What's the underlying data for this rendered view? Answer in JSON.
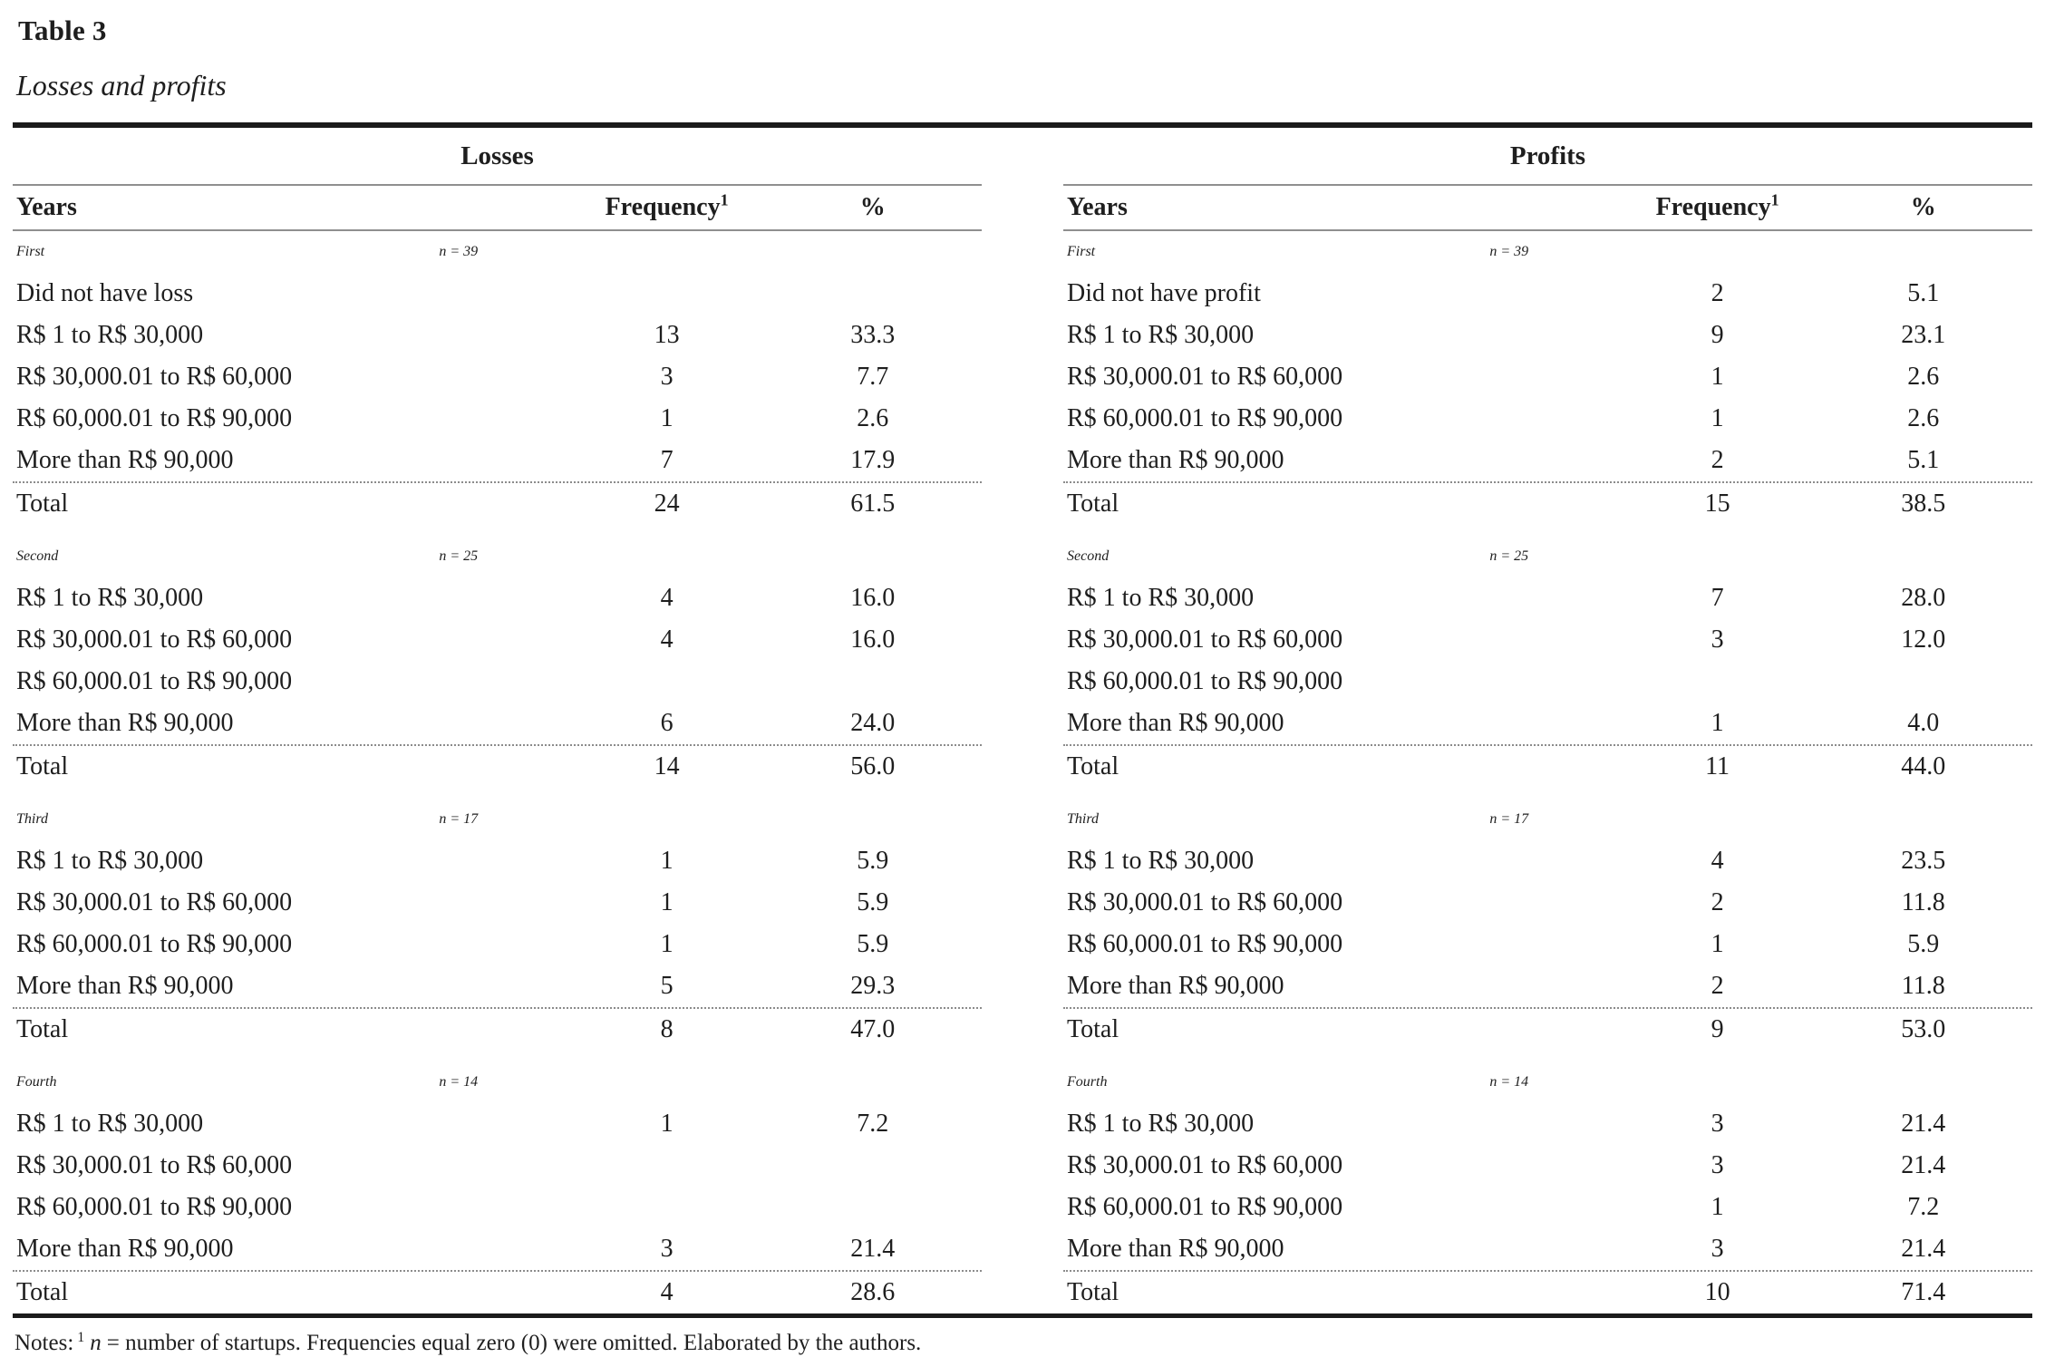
{
  "title": "Table 3",
  "subtitle": "Losses and profits",
  "columns": {
    "years": "Years",
    "frequency": "Frequency",
    "frequency_sup": "1",
    "percent": "%"
  },
  "panels": [
    {
      "name": "Losses",
      "groups": [
        {
          "year": "First",
          "n": "n = 39",
          "rows": [
            {
              "label": "Did not have loss",
              "freq": "",
              "pct": ""
            },
            {
              "label": "R$ 1 to R$ 30,000",
              "freq": "13",
              "pct": "33.3"
            },
            {
              "label": "R$ 30,000.01 to R$ 60,000",
              "freq": "3",
              "pct": "7.7"
            },
            {
              "label": "R$ 60,000.01 to R$ 90,000",
              "freq": "1",
              "pct": "2.6"
            },
            {
              "label": "More than R$ 90,000",
              "freq": "7",
              "pct": "17.9"
            }
          ],
          "total": {
            "label": "Total",
            "freq": "24",
            "pct": "61.5"
          }
        },
        {
          "year": "Second",
          "n": "n = 25",
          "rows": [
            {
              "label": "R$ 1 to R$ 30,000",
              "freq": "4",
              "pct": "16.0"
            },
            {
              "label": "R$ 30,000.01 to R$ 60,000",
              "freq": "4",
              "pct": "16.0"
            },
            {
              "label": "R$ 60,000.01 to R$ 90,000",
              "freq": "",
              "pct": ""
            },
            {
              "label": "More than R$ 90,000",
              "freq": "6",
              "pct": "24.0"
            }
          ],
          "total": {
            "label": "Total",
            "freq": "14",
            "pct": "56.0"
          }
        },
        {
          "year": "Third",
          "n": "n = 17",
          "rows": [
            {
              "label": "R$ 1 to R$ 30,000",
              "freq": "1",
              "pct": "5.9"
            },
            {
              "label": "R$ 30,000.01 to R$ 60,000",
              "freq": "1",
              "pct": "5.9"
            },
            {
              "label": "R$ 60,000.01 to R$ 90,000",
              "freq": "1",
              "pct": "5.9"
            },
            {
              "label": "More than R$ 90,000",
              "freq": "5",
              "pct": "29.3"
            }
          ],
          "total": {
            "label": "Total",
            "freq": "8",
            "pct": "47.0"
          }
        },
        {
          "year": "Fourth",
          "n": "n = 14",
          "rows": [
            {
              "label": "R$ 1 to R$ 30,000",
              "freq": "1",
              "pct": "7.2"
            },
            {
              "label": "R$ 30,000.01 to R$ 60,000",
              "freq": "",
              "pct": ""
            },
            {
              "label": "R$ 60,000.01 to R$ 90,000",
              "freq": "",
              "pct": ""
            },
            {
              "label": "More than R$ 90,000",
              "freq": "3",
              "pct": "21.4"
            }
          ],
          "total": {
            "label": "Total",
            "freq": "4",
            "pct": "28.6"
          }
        }
      ]
    },
    {
      "name": "Profits",
      "groups": [
        {
          "year": "First",
          "n": "n = 39",
          "rows": [
            {
              "label": "Did not have profit",
              "freq": "2",
              "pct": "5.1"
            },
            {
              "label": "R$ 1 to R$ 30,000",
              "freq": "9",
              "pct": "23.1"
            },
            {
              "label": "R$ 30,000.01 to R$ 60,000",
              "freq": "1",
              "pct": "2.6"
            },
            {
              "label": "R$ 60,000.01 to R$ 90,000",
              "freq": "1",
              "pct": "2.6"
            },
            {
              "label": "More than R$ 90,000",
              "freq": "2",
              "pct": "5.1"
            }
          ],
          "total": {
            "label": "Total",
            "freq": "15",
            "pct": "38.5"
          }
        },
        {
          "year": "Second",
          "n": "n = 25",
          "rows": [
            {
              "label": "R$ 1 to R$ 30,000",
              "freq": "7",
              "pct": "28.0"
            },
            {
              "label": "R$ 30,000.01 to R$ 60,000",
              "freq": "3",
              "pct": "12.0"
            },
            {
              "label": "R$ 60,000.01 to R$ 90,000",
              "freq": "",
              "pct": ""
            },
            {
              "label": "More than R$ 90,000",
              "freq": "1",
              "pct": "4.0"
            }
          ],
          "total": {
            "label": "Total",
            "freq": "11",
            "pct": "44.0"
          }
        },
        {
          "year": "Third",
          "n": "n = 17",
          "rows": [
            {
              "label": "R$ 1 to R$ 30,000",
              "freq": "4",
              "pct": "23.5"
            },
            {
              "label": "R$ 30,000.01 to R$ 60,000",
              "freq": "2",
              "pct": "11.8"
            },
            {
              "label": "R$ 60,000.01 to R$ 90,000",
              "freq": "1",
              "pct": "5.9"
            },
            {
              "label": "More than R$ 90,000",
              "freq": "2",
              "pct": "11.8"
            }
          ],
          "total": {
            "label": "Total",
            "freq": "9",
            "pct": "53.0"
          }
        },
        {
          "year": "Fourth",
          "n": "n = 14",
          "rows": [
            {
              "label": "R$ 1 to R$ 30,000",
              "freq": "3",
              "pct": "21.4"
            },
            {
              "label": "R$ 30,000.01 to R$ 60,000",
              "freq": "3",
              "pct": "21.4"
            },
            {
              "label": "R$ 60,000.01 to R$ 90,000",
              "freq": "1",
              "pct": "7.2"
            },
            {
              "label": "More than R$ 90,000",
              "freq": "3",
              "pct": "21.4"
            }
          ],
          "total": {
            "label": "Total",
            "freq": "10",
            "pct": "71.4"
          }
        }
      ]
    }
  ],
  "note": {
    "label": "Notes:",
    "sup": "1",
    "n_word": "n",
    "rest": "= number of startups. Frequencies equal zero (0) were omitted. Elaborated by the authors."
  },
  "colors": {
    "text": "#1e1e1e",
    "rule_thick": "#1b1b1b",
    "rule_thin": "#8f8f8f",
    "dotted_rule": "#8c8c8c"
  }
}
